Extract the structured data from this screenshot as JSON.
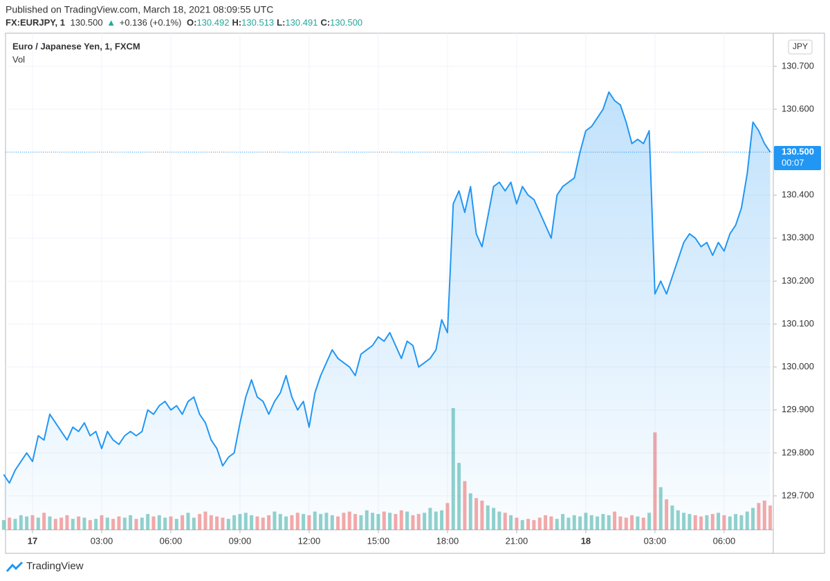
{
  "header": {
    "published": "Published on TradingView.com, March 18, 2021 08:09:55 UTC",
    "symbol": "FX:EURJPY, 1",
    "last": "130.500",
    "arrow": "▲",
    "change": "+0.136 (+0.1%)",
    "ohlc": [
      {
        "label": "O:",
        "value": "130.492"
      },
      {
        "label": "H:",
        "value": "130.513"
      },
      {
        "label": "L:",
        "value": "130.491"
      },
      {
        "label": "C:",
        "value": "130.500"
      }
    ]
  },
  "footer": {
    "brand": "TradingView"
  },
  "chart_data": {
    "type": "line",
    "currency": "JPY",
    "categories": [
      null,
      null,
      null,
      null,
      null,
      "17",
      null,
      null,
      null,
      null,
      null,
      null,
      null,
      null,
      null,
      null,
      null,
      "03:00",
      null,
      null,
      null,
      null,
      null,
      null,
      null,
      null,
      null,
      null,
      null,
      "06:00",
      null,
      null,
      null,
      null,
      null,
      null,
      null,
      null,
      null,
      null,
      null,
      "09:00",
      null,
      null,
      null,
      null,
      null,
      null,
      null,
      null,
      null,
      null,
      null,
      "12:00",
      null,
      null,
      null,
      null,
      null,
      null,
      null,
      null,
      null,
      null,
      null,
      "15:00",
      null,
      null,
      null,
      null,
      null,
      null,
      null,
      null,
      null,
      null,
      null,
      "18:00",
      null,
      null,
      null,
      null,
      null,
      null,
      null,
      null,
      null,
      null,
      null,
      "21:00",
      null,
      null,
      null,
      null,
      null,
      null,
      null,
      null,
      null,
      null,
      null,
      "18",
      null,
      null,
      null,
      null,
      null,
      null,
      null,
      null,
      null,
      null,
      null,
      "03:00",
      null,
      null,
      null,
      null,
      null,
      null,
      null,
      null,
      null,
      null,
      null,
      "06:00",
      null,
      null,
      null,
      null,
      null,
      null,
      null,
      null
    ],
    "bold_labels": [
      "17",
      "18"
    ],
    "series": [
      {
        "name": "Euro / Japanese Yen, 1, FXCM",
        "color": "#2196f3",
        "values": [
          129.75,
          129.73,
          129.76,
          129.78,
          129.8,
          129.78,
          129.84,
          129.83,
          129.89,
          129.87,
          129.85,
          129.83,
          129.86,
          129.85,
          129.87,
          129.84,
          129.85,
          129.81,
          129.85,
          129.83,
          129.82,
          129.84,
          129.85,
          129.84,
          129.85,
          129.9,
          129.89,
          129.91,
          129.92,
          129.9,
          129.91,
          129.89,
          129.92,
          129.93,
          129.89,
          129.87,
          129.83,
          129.81,
          129.77,
          129.79,
          129.8,
          129.87,
          129.93,
          129.97,
          129.93,
          129.92,
          129.89,
          129.92,
          129.94,
          129.98,
          129.93,
          129.9,
          129.92,
          129.86,
          129.94,
          129.98,
          130.01,
          130.04,
          130.02,
          130.01,
          130.0,
          129.98,
          130.03,
          130.04,
          130.05,
          130.07,
          130.06,
          130.08,
          130.05,
          130.02,
          130.06,
          130.05,
          130.0,
          130.01,
          130.02,
          130.04,
          130.11,
          130.08,
          130.38,
          130.41,
          130.36,
          130.42,
          130.31,
          130.28,
          130.35,
          130.42,
          130.43,
          130.41,
          130.43,
          130.38,
          130.42,
          130.4,
          130.39,
          130.36,
          130.33,
          130.3,
          130.4,
          130.42,
          130.43,
          130.44,
          130.5,
          130.55,
          130.56,
          130.58,
          130.6,
          130.64,
          130.62,
          130.61,
          130.57,
          130.52,
          130.53,
          130.52,
          130.55,
          130.17,
          130.2,
          130.17,
          130.21,
          130.25,
          130.29,
          130.31,
          130.3,
          130.28,
          130.29,
          130.26,
          130.29,
          130.27,
          130.31,
          130.33,
          130.37,
          130.45,
          130.57,
          130.55,
          130.52,
          130.5
        ]
      },
      {
        "name": "Vol",
        "up_color": "#26a69a",
        "down_color": "#ef5350",
        "values": [
          8,
          10,
          9,
          12,
          11,
          12,
          10,
          14,
          11,
          9,
          10,
          12,
          9,
          11,
          10,
          8,
          9,
          12,
          10,
          9,
          11,
          10,
          12,
          9,
          10,
          13,
          11,
          12,
          10,
          11,
          9,
          12,
          14,
          10,
          13,
          15,
          12,
          11,
          10,
          9,
          12,
          13,
          14,
          12,
          11,
          10,
          12,
          15,
          13,
          11,
          12,
          14,
          13,
          12,
          15,
          13,
          14,
          12,
          11,
          14,
          15,
          13,
          12,
          16,
          14,
          13,
          15,
          14,
          13,
          16,
          15,
          12,
          13,
          14,
          18,
          15,
          16,
          22,
          100,
          55,
          40,
          30,
          26,
          24,
          20,
          18,
          15,
          14,
          12,
          10,
          8,
          9,
          8,
          10,
          12,
          11,
          9,
          13,
          10,
          12,
          11,
          14,
          12,
          11,
          13,
          12,
          15,
          11,
          10,
          12,
          11,
          10,
          14,
          80,
          35,
          25,
          20,
          16,
          14,
          13,
          12,
          11,
          12,
          13,
          14,
          12,
          11,
          13,
          12,
          15,
          18,
          22,
          24,
          20
        ]
      }
    ],
    "ylim": [
      129.621,
      130.777
    ],
    "yticks": [
      {
        "value": 129.7,
        "label": "129.700"
      },
      {
        "value": 129.8,
        "label": "129.800"
      },
      {
        "value": 129.9,
        "label": "129.900"
      },
      {
        "value": 130.0,
        "label": "130.000"
      },
      {
        "value": 130.1,
        "label": "130.100"
      },
      {
        "value": 130.2,
        "label": "130.200"
      },
      {
        "value": 130.3,
        "label": "130.300"
      },
      {
        "value": 130.4,
        "label": "130.400"
      },
      {
        "value": 130.5,
        "label": "130.500"
      },
      {
        "value": 130.6,
        "label": "130.600"
      },
      {
        "value": 130.7,
        "label": "130.700"
      }
    ],
    "price_label": {
      "value": 130.5,
      "label": "130.500"
    },
    "countdown": "00:07",
    "grid": true
  }
}
